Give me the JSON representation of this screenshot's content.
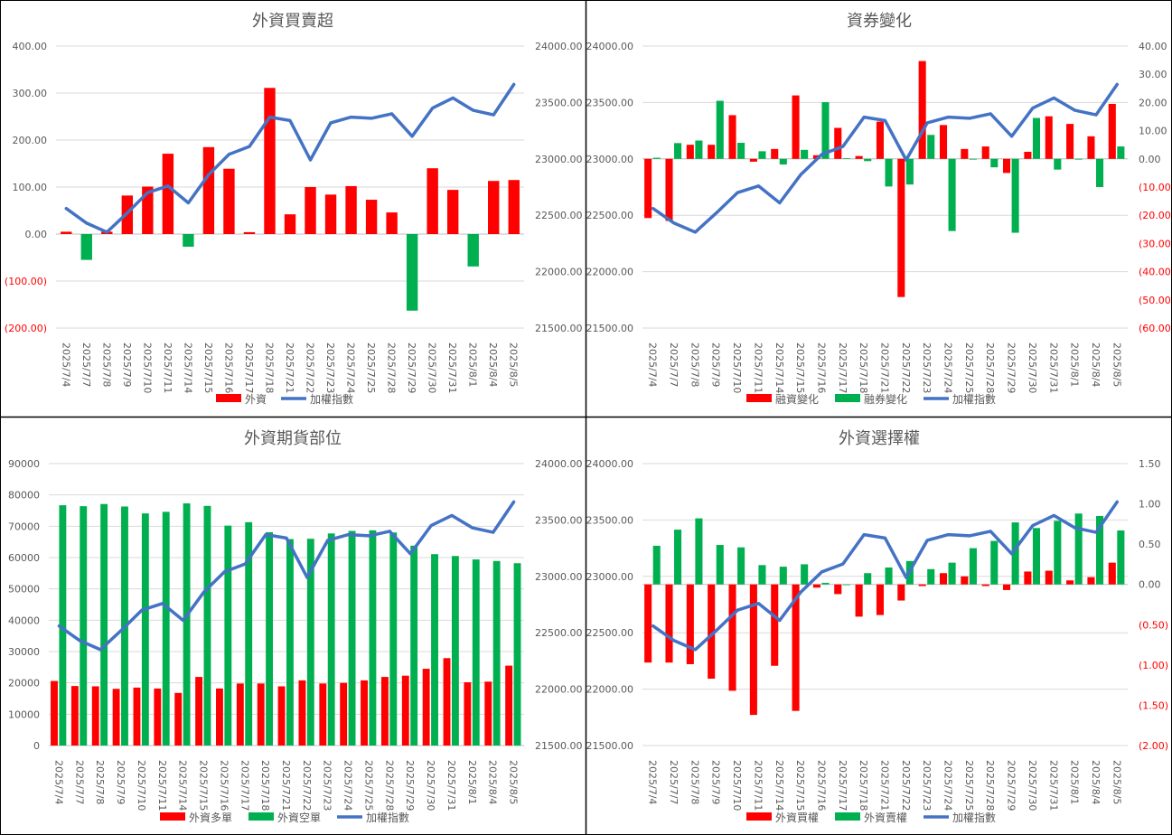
{
  "colors": {
    "red": "#ff0000",
    "green": "#00b050",
    "blue": "#4472c4",
    "text": "#595959",
    "title": "#595959",
    "grid": "#d9d9d9",
    "border": "#000000"
  },
  "chart_data": [
    {
      "title": "外資買賣超",
      "type": "bar+line",
      "categories": [
        "2025/7/4",
        "2025/7/7",
        "2025/7/8",
        "2025/7/9",
        "2025/7/10",
        "2025/7/11",
        "2025/7/14",
        "2025/7/15",
        "2025/7/16",
        "2025/7/17",
        "2025/7/18",
        "2025/7/21",
        "2025/7/22",
        "2025/7/23",
        "2025/7/24",
        "2025/7/25",
        "2025/7/28",
        "2025/7/29",
        "2025/7/30",
        "2025/7/31",
        "2025/8/1",
        "2025/8/4",
        "2025/8/5"
      ],
      "left_axis": {
        "min": -200,
        "max": 400,
        "step": 100,
        "ticks": [
          "(200.00)",
          "(100.00)",
          "0.00",
          "100.00",
          "200.00",
          "300.00",
          "400.00"
        ]
      },
      "right_axis": {
        "min": 21500,
        "max": 24000,
        "step": 500,
        "ticks": [
          "21500.00",
          "22000.00",
          "22500.00",
          "23000.00",
          "23500.00",
          "24000.00"
        ]
      },
      "bar_series": [
        {
          "name": "外資",
          "color": "#ff0000",
          "neg_color": "#00b050",
          "values": [
            5,
            -55,
            5,
            82,
            101,
            171,
            -27,
            185,
            139,
            4,
            311,
            42,
            100,
            84,
            102,
            73,
            46,
            -163,
            140,
            94,
            -69,
            113,
            115
          ]
        }
      ],
      "line_series": {
        "name": "加權指數",
        "values": [
          22560,
          22430,
          22350,
          22520,
          22700,
          22760,
          22610,
          22860,
          23040,
          23110,
          23370,
          23340,
          22990,
          23320,
          23370,
          23360,
          23400,
          23200,
          23450,
          23540,
          23430,
          23390,
          23660
        ]
      },
      "legend": [
        {
          "label": "外資",
          "type": "bar",
          "color": "#ff0000"
        },
        {
          "label": "加權指數",
          "type": "line",
          "color": "#4472c4"
        }
      ]
    },
    {
      "title": "資券變化",
      "type": "bar+line",
      "categories": [
        "2025/7/4",
        "2025/7/7",
        "2025/7/8",
        "2025/7/9",
        "2025/7/10",
        "2025/7/11",
        "2025/7/14",
        "2025/7/15",
        "2025/7/16",
        "2025/7/17",
        "2025/7/18",
        "2025/7/21",
        "2025/7/22",
        "2025/7/23",
        "2025/7/24",
        "2025/7/25",
        "2025/7/28",
        "2025/7/29",
        "2025/7/30",
        "2025/7/31",
        "2025/8/1",
        "2025/8/4",
        "2025/8/5"
      ],
      "left_axis": {
        "min": 21500,
        "max": 24000,
        "step": 500,
        "ticks": [
          "21500.00",
          "22000.00",
          "22500.00",
          "23000.00",
          "23500.00",
          "24000.00"
        ]
      },
      "right_axis": {
        "min": -60,
        "max": 40,
        "step": 10,
        "ticks": [
          "(60.00)",
          "(50.00)",
          "(40.00)",
          "(30.00)",
          "(20.00)",
          "(10.00)",
          "0.00",
          "10.00",
          "20.00",
          "30.00",
          "40.00"
        ]
      },
      "bar_series": [
        {
          "name": "融資變化",
          "color": "#ff0000",
          "values": [
            -21,
            -22,
            5,
            5,
            15.5,
            -1,
            3.5,
            22.5,
            1.3,
            11,
            1,
            13.2,
            -49,
            34.7,
            12,
            3.5,
            4.4,
            -5,
            2.5,
            15.1,
            12.4,
            8,
            19.5
          ]
        },
        {
          "name": "融券變化",
          "color": "#00b050",
          "values": [
            0.4,
            5.6,
            6.5,
            20.6,
            5.7,
            2.7,
            -2,
            3.2,
            20.1,
            0.2,
            -0.8,
            -9.8,
            -9.1,
            8.5,
            -25.6,
            0,
            -3,
            -26.2,
            14.5,
            -3.8,
            0,
            -10,
            4.4
          ]
        }
      ],
      "line_series": {
        "name": "加權指數",
        "values": [
          22560,
          22430,
          22350,
          22520,
          22700,
          22760,
          22610,
          22860,
          23040,
          23110,
          23370,
          23340,
          22990,
          23320,
          23370,
          23360,
          23400,
          23200,
          23450,
          23540,
          23430,
          23390,
          23660
        ]
      },
      "legend": [
        {
          "label": "融資變化",
          "type": "bar",
          "color": "#ff0000"
        },
        {
          "label": "融券變化",
          "type": "bar",
          "color": "#00b050"
        },
        {
          "label": "加權指數",
          "type": "line",
          "color": "#4472c4"
        }
      ]
    },
    {
      "title": "外資期貨部位",
      "type": "bar+line",
      "categories": [
        "2025/7/4",
        "2025/7/7",
        "2025/7/8",
        "2025/7/9",
        "2025/7/10",
        "2025/7/11",
        "2025/7/14",
        "2025/7/15",
        "2025/7/16",
        "2025/7/17",
        "2025/7/18",
        "2025/7/21",
        "2025/7/22",
        "2025/7/23",
        "2025/7/24",
        "2025/7/25",
        "2025/7/28",
        "2025/7/29",
        "2025/7/30",
        "2025/7/31",
        "2025/8/1",
        "2025/8/4",
        "2025/8/5"
      ],
      "left_axis": {
        "min": 0,
        "max": 90000,
        "step": 10000,
        "ticks": [
          "0",
          "10000",
          "20000",
          "30000",
          "40000",
          "50000",
          "60000",
          "70000",
          "80000",
          "90000"
        ]
      },
      "right_axis": {
        "min": 21500,
        "max": 24000,
        "step": 500,
        "ticks": [
          "21500.00",
          "22000.00",
          "22500.00",
          "23000.00",
          "23500.00",
          "24000.00"
        ]
      },
      "bar_series": [
        {
          "name": "外資多單",
          "color": "#ff0000",
          "values": [
            20600,
            19000,
            18900,
            18100,
            18500,
            18200,
            16800,
            21900,
            18200,
            19800,
            19800,
            18900,
            20800,
            19800,
            20000,
            20800,
            21900,
            22300,
            24500,
            27900,
            20200,
            20400,
            25500
          ]
        },
        {
          "name": "外資空單",
          "color": "#00b050",
          "values": [
            76700,
            76400,
            77100,
            76300,
            74100,
            74600,
            77300,
            76500,
            70200,
            71300,
            68100,
            65900,
            66000,
            67700,
            68500,
            68700,
            68000,
            63800,
            61100,
            60500,
            59400,
            58900,
            58200
          ]
        }
      ],
      "line_series": {
        "name": "加權指數",
        "values": [
          22560,
          22430,
          22350,
          22520,
          22700,
          22760,
          22610,
          22860,
          23040,
          23110,
          23370,
          23340,
          22990,
          23320,
          23370,
          23360,
          23400,
          23200,
          23450,
          23540,
          23430,
          23390,
          23660
        ]
      },
      "legend": [
        {
          "label": "外資多單",
          "type": "bar",
          "color": "#ff0000"
        },
        {
          "label": "外資空單",
          "type": "bar",
          "color": "#00b050"
        },
        {
          "label": "加權指數",
          "type": "line",
          "color": "#4472c4"
        }
      ]
    },
    {
      "title": "外資選擇權",
      "type": "bar+line",
      "categories": [
        "2025/7/4",
        "2025/7/7",
        "2025/7/8",
        "2025/7/9",
        "2025/7/10",
        "2025/7/11",
        "2025/7/14",
        "2025/7/15",
        "2025/7/16",
        "2025/7/17",
        "2025/7/18",
        "2025/7/21",
        "2025/7/22",
        "2025/7/23",
        "2025/7/24",
        "2025/7/25",
        "2025/7/28",
        "2025/7/29",
        "2025/7/30",
        "2025/7/31",
        "2025/8/1",
        "2025/8/4",
        "2025/8/5"
      ],
      "left_axis": {
        "min": 21500,
        "max": 24000,
        "step": 500,
        "ticks": [
          "21500.00",
          "22000.00",
          "22500.00",
          "23000.00",
          "23500.00",
          "24000.00"
        ]
      },
      "right_axis": {
        "min": -2,
        "max": 1.5,
        "step": 0.5,
        "ticks": [
          "(2.00)",
          "(1.50)",
          "(1.00)",
          "(0.50)",
          "0.00",
          "0.50",
          "1.00",
          "1.50"
        ]
      },
      "bar_series": [
        {
          "name": "外資買權",
          "color": "#ff0000",
          "values": [
            -0.97,
            -0.97,
            -0.99,
            -1.17,
            -1.32,
            -1.62,
            -1.01,
            -1.57,
            -0.04,
            -0.12,
            -0.4,
            -0.38,
            -0.2,
            -0.02,
            0.14,
            0.1,
            -0.02,
            -0.07,
            0.16,
            0.17,
            0.05,
            0.09,
            0.27
          ]
        },
        {
          "name": "外資賣權",
          "color": "#00b050",
          "values": [
            0.48,
            0.68,
            0.82,
            0.49,
            0.46,
            0.24,
            0.22,
            0.25,
            0.02,
            0,
            0.14,
            0.21,
            0.29,
            0.19,
            0.27,
            0.45,
            0.54,
            0.77,
            0.7,
            0.79,
            0.88,
            0.85,
            0.67
          ]
        }
      ],
      "line_series": {
        "name": "加權指數",
        "values": [
          22560,
          22430,
          22350,
          22520,
          22700,
          22760,
          22610,
          22860,
          23040,
          23110,
          23370,
          23340,
          22990,
          23320,
          23370,
          23360,
          23400,
          23200,
          23450,
          23540,
          23430,
          23390,
          23660
        ]
      },
      "legend": [
        {
          "label": "外資買權",
          "type": "bar",
          "color": "#ff0000"
        },
        {
          "label": "外資賣權",
          "type": "bar",
          "color": "#00b050"
        },
        {
          "label": "加權指數",
          "type": "line",
          "color": "#4472c4"
        }
      ]
    }
  ]
}
